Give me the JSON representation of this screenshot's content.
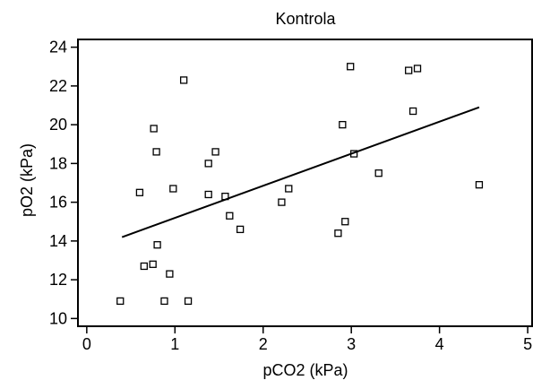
{
  "chart_data": {
    "type": "scatter",
    "title": "Kontrola",
    "xlabel": "pCO2 (kPa)",
    "ylabel": "pO2 (kPa)",
    "xlim": [
      -0.1,
      5.05
    ],
    "ylim": [
      9.6,
      24.4
    ],
    "xticks": [
      0,
      1,
      2,
      3,
      4,
      5
    ],
    "yticks": [
      10,
      12,
      14,
      16,
      18,
      20,
      22,
      24
    ],
    "grid": false,
    "legend": "none",
    "marker": "open-square",
    "colors": {
      "marker": "#000000",
      "line": "#000000",
      "axis": "#000000"
    },
    "series": [
      {
        "points": [
          [
            0.38,
            10.9
          ],
          [
            0.6,
            16.5
          ],
          [
            0.65,
            12.7
          ],
          [
            0.75,
            12.8
          ],
          [
            0.76,
            19.8
          ],
          [
            0.79,
            18.6
          ],
          [
            0.8,
            13.8
          ],
          [
            0.88,
            10.9
          ],
          [
            0.94,
            12.3
          ],
          [
            0.98,
            16.7
          ],
          [
            1.1,
            22.3
          ],
          [
            1.15,
            10.9
          ],
          [
            1.38,
            16.4
          ],
          [
            1.38,
            18.0
          ],
          [
            1.46,
            18.6
          ],
          [
            1.57,
            16.3
          ],
          [
            1.62,
            15.3
          ],
          [
            1.74,
            14.6
          ],
          [
            2.21,
            16.0
          ],
          [
            2.29,
            16.7
          ],
          [
            2.85,
            14.4
          ],
          [
            2.9,
            20.0
          ],
          [
            2.93,
            15.0
          ],
          [
            2.99,
            23.0
          ],
          [
            3.03,
            18.5
          ],
          [
            3.31,
            17.5
          ],
          [
            3.65,
            22.8
          ],
          [
            3.7,
            20.7
          ],
          [
            3.75,
            22.9
          ],
          [
            4.45,
            16.9
          ]
        ]
      }
    ],
    "regression_line": {
      "x": [
        0.4,
        4.45
      ],
      "y": [
        14.2,
        20.9
      ]
    }
  }
}
